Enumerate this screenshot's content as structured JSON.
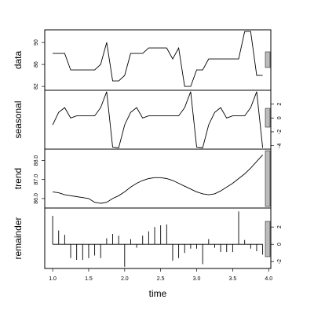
{
  "chart_data": [
    {
      "type": "line",
      "ylabel": "data",
      "yaxis_side": "left",
      "color": "#000000",
      "ylim": [
        81.3,
        92.3
      ],
      "yticks": [
        82,
        86,
        90
      ],
      "values": [
        88,
        88,
        88,
        85,
        85,
        85,
        85,
        85,
        86,
        90,
        83,
        83,
        84,
        88,
        88,
        88,
        89,
        89,
        89,
        89,
        87,
        89,
        82,
        82,
        85,
        85,
        87,
        87,
        87,
        87,
        87,
        87,
        92,
        92,
        84,
        84
      ]
    },
    {
      "type": "line",
      "ylabel": "seasonal",
      "yaxis_side": "right",
      "color": "#000000",
      "ylim": [
        -4.5,
        4.0
      ],
      "yticks": [
        -4,
        -2,
        0,
        2
      ],
      "values": [
        -1,
        0.8,
        1.5,
        0,
        0.3,
        0.3,
        0.3,
        0.3,
        1.5,
        3.8,
        -4.2,
        -4.3,
        -1,
        0.8,
        1.5,
        0,
        0.3,
        0.3,
        0.3,
        0.3,
        0.3,
        0.3,
        1.5,
        3.8,
        -4.2,
        -4.3,
        -1,
        0.8,
        1.5,
        0,
        0.3,
        0.3,
        0.3,
        1.5,
        3.8,
        -4.3
      ]
    },
    {
      "type": "line",
      "ylabel": "trend",
      "yaxis_side": "left",
      "color": "#000000",
      "ylim": [
        85.5,
        88.6
      ],
      "yticks": [
        {
          "value": 86,
          "label": "86.0"
        },
        {
          "value": 87,
          "label": "87.0"
        },
        {
          "value": 88,
          "label": "88.0"
        }
      ],
      "values": [
        86.35,
        86.3,
        86.2,
        86.15,
        86.1,
        86.05,
        86.0,
        85.8,
        85.75,
        85.8,
        86.0,
        86.15,
        86.35,
        86.6,
        86.8,
        86.95,
        87.05,
        87.1,
        87.1,
        87.05,
        86.95,
        86.8,
        86.65,
        86.5,
        86.35,
        86.25,
        86.2,
        86.25,
        86.4,
        86.6,
        86.8,
        87.05,
        87.3,
        87.6,
        87.95,
        88.3
      ]
    },
    {
      "type": "bar",
      "ylabel": "remainder",
      "yaxis_side": "right",
      "color": "#000000",
      "ylim": [
        -2.8,
        4.2
      ],
      "yticks": [
        -2,
        0,
        2
      ],
      "values": [
        3.3,
        1.6,
        1.1,
        -1.6,
        -1.8,
        -1.8,
        -1.6,
        -1.3,
        -1.6,
        0.7,
        1.2,
        1.0,
        -2.6,
        0.6,
        -0.4,
        1.0,
        1.5,
        2.0,
        2.2,
        2.3,
        -1.9,
        -1.6,
        -1.0,
        -0.5,
        -0.5,
        -2.3,
        0.6,
        -0.4,
        -0.9,
        -0.9,
        -0.9,
        3.8,
        0.5,
        -0.5,
        -0.8,
        -1.2
      ],
      "xlabel": "time",
      "xlim": [
        0.89,
        4.03
      ],
      "xticks": [
        {
          "value": 1,
          "label": "1.0"
        },
        {
          "value": 1.5,
          "label": "1.5"
        },
        {
          "value": 2,
          "label": "2.0"
        },
        {
          "value": 2.5,
          "label": "2.5"
        },
        {
          "value": 3,
          "label": "3.0"
        },
        {
          "value": 3.5,
          "label": "3.5"
        },
        {
          "value": 4,
          "label": "4.0"
        }
      ],
      "x": [
        1,
        1.0833,
        1.1667,
        1.25,
        1.3333,
        1.4167,
        1.5,
        1.5833,
        1.6667,
        1.75,
        1.8333,
        1.9167,
        2,
        2.0833,
        2.1667,
        2.25,
        2.3333,
        2.4167,
        2.5,
        2.5833,
        2.6667,
        2.75,
        2.8333,
        2.9167,
        3,
        3.0833,
        3.1667,
        3.25,
        3.3333,
        3.4167,
        3.5,
        3.5833,
        3.6667,
        3.75,
        3.8333,
        3.9167
      ]
    }
  ]
}
